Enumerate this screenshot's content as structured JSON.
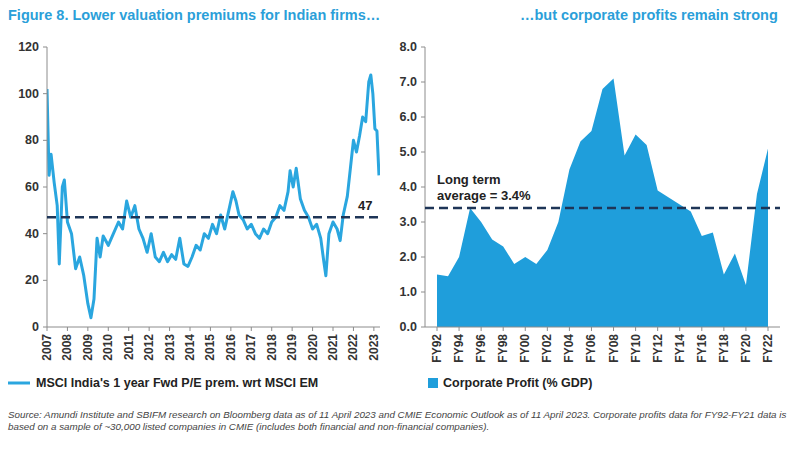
{
  "source": "Source: Amundi Institute and SBIFM research on Bloomberg data as of 11 April 2023 and CMIE Economic Outlook as of 11 April 2023. Corporate profits data for FY92-FY21 data is based on a sample of ~30,000 listed companies in CMIE (includes both financial and non-financial companies).",
  "chart_data": [
    {
      "type": "line",
      "title": "Figure 8. Lower valuation premiums for Indian firms…",
      "x": [
        2007.0,
        2007.1,
        2007.2,
        2007.35,
        2007.5,
        2007.6,
        2007.75,
        2007.85,
        2008.0,
        2008.2,
        2008.4,
        2008.6,
        2008.8,
        2009.0,
        2009.15,
        2009.3,
        2009.45,
        2009.6,
        2009.75,
        2010.0,
        2010.25,
        2010.5,
        2010.7,
        2010.9,
        2011.1,
        2011.3,
        2011.5,
        2011.7,
        2011.9,
        2012.1,
        2012.3,
        2012.5,
        2012.7,
        2012.9,
        2013.1,
        2013.3,
        2013.5,
        2013.7,
        2013.9,
        2014.1,
        2014.3,
        2014.5,
        2014.7,
        2014.9,
        2015.1,
        2015.3,
        2015.5,
        2015.7,
        2015.9,
        2016.1,
        2016.25,
        2016.4,
        2016.6,
        2016.8,
        2017.0,
        2017.2,
        2017.4,
        2017.6,
        2017.8,
        2018.0,
        2018.2,
        2018.4,
        2018.6,
        2018.8,
        2018.9,
        2019.05,
        2019.2,
        2019.4,
        2019.6,
        2019.8,
        2020.0,
        2020.2,
        2020.4,
        2020.55,
        2020.65,
        2020.8,
        2021.0,
        2021.2,
        2021.35,
        2021.5,
        2021.7,
        2021.85,
        2022.0,
        2022.15,
        2022.3,
        2022.45,
        2022.6,
        2022.75,
        2022.85,
        2022.95,
        2023.05,
        2023.15,
        2023.25
      ],
      "series": [
        {
          "name": "MSCI India's 1 year Fwd P/E prem. wrt MSCI EM",
          "color": "#2aa6df",
          "values": [
            102,
            65,
            74,
            62,
            52,
            27,
            60,
            63,
            45,
            40,
            25,
            30,
            22,
            10,
            4,
            12,
            38,
            30,
            39,
            35,
            40,
            45,
            42,
            54,
            47,
            52,
            42,
            38,
            32,
            40,
            30,
            28,
            32,
            28,
            31,
            29,
            38,
            27,
            26,
            30,
            35,
            33,
            40,
            38,
            44,
            40,
            48,
            42,
            50,
            58,
            54,
            48,
            46,
            42,
            44,
            40,
            38,
            42,
            40,
            45,
            47,
            52,
            50,
            58,
            67,
            60,
            68,
            55,
            50,
            47,
            42,
            44,
            38,
            28,
            22,
            40,
            45,
            42,
            37,
            48,
            56,
            68,
            80,
            75,
            82,
            90,
            88,
            105,
            108,
            100,
            85,
            84,
            65
          ]
        }
      ],
      "xlim": [
        2007,
        2023.3
      ],
      "xticks": [
        2007,
        2008,
        2009,
        2010,
        2011,
        2012,
        2013,
        2014,
        2015,
        2016,
        2017,
        2018,
        2019,
        2020,
        2021,
        2022,
        2023
      ],
      "ylim": [
        0,
        120
      ],
      "yticks": [
        0,
        20,
        40,
        60,
        80,
        100,
        120
      ],
      "reference_lines": [
        {
          "value": 47,
          "label": "47",
          "line_style": "dashed"
        }
      ],
      "grid": false,
      "legend": "bottom"
    },
    {
      "type": "area",
      "title": "…but corporate profits remain strong",
      "categories": [
        "FY92",
        null,
        "FY94",
        null,
        "FY96",
        null,
        "FY98",
        null,
        "FY00",
        null,
        "FY02",
        null,
        "FY04",
        null,
        "FY06",
        null,
        "FY08",
        null,
        "FY10",
        null,
        "FY12",
        null,
        "FY14",
        null,
        "FY16",
        null,
        "FY18",
        null,
        "FY20",
        null,
        "FY22"
      ],
      "series": [
        {
          "name": "Corporate Profit (% GDP)",
          "color": "#1f9edb",
          "values": [
            1.5,
            1.45,
            2.0,
            3.4,
            3.0,
            2.5,
            2.3,
            1.8,
            2.0,
            1.8,
            2.2,
            3.0,
            4.5,
            5.3,
            5.6,
            6.8,
            7.1,
            4.9,
            5.5,
            5.2,
            3.9,
            3.7,
            3.5,
            3.3,
            2.6,
            2.7,
            1.5,
            2.1,
            1.2,
            3.8,
            5.1
          ]
        }
      ],
      "ylim": [
        0,
        8
      ],
      "yticks": [
        {
          "value": 0,
          "label": "0.0"
        },
        {
          "value": 1,
          "label": "1.0"
        },
        {
          "value": 2,
          "label": "2.0"
        },
        {
          "value": 3,
          "label": "3.0"
        },
        {
          "value": 4,
          "label": "4.0"
        },
        {
          "value": 5,
          "label": "5.0"
        },
        {
          "value": 6,
          "label": "6.0"
        },
        {
          "value": 7,
          "label": "7.0"
        },
        {
          "value": 8,
          "label": "8.0"
        }
      ],
      "reference_lines": [
        {
          "value": 3.4,
          "label": "Long term average = 3.4%",
          "line_style": "dashed"
        }
      ],
      "grid": false,
      "legend": "bottom"
    }
  ]
}
